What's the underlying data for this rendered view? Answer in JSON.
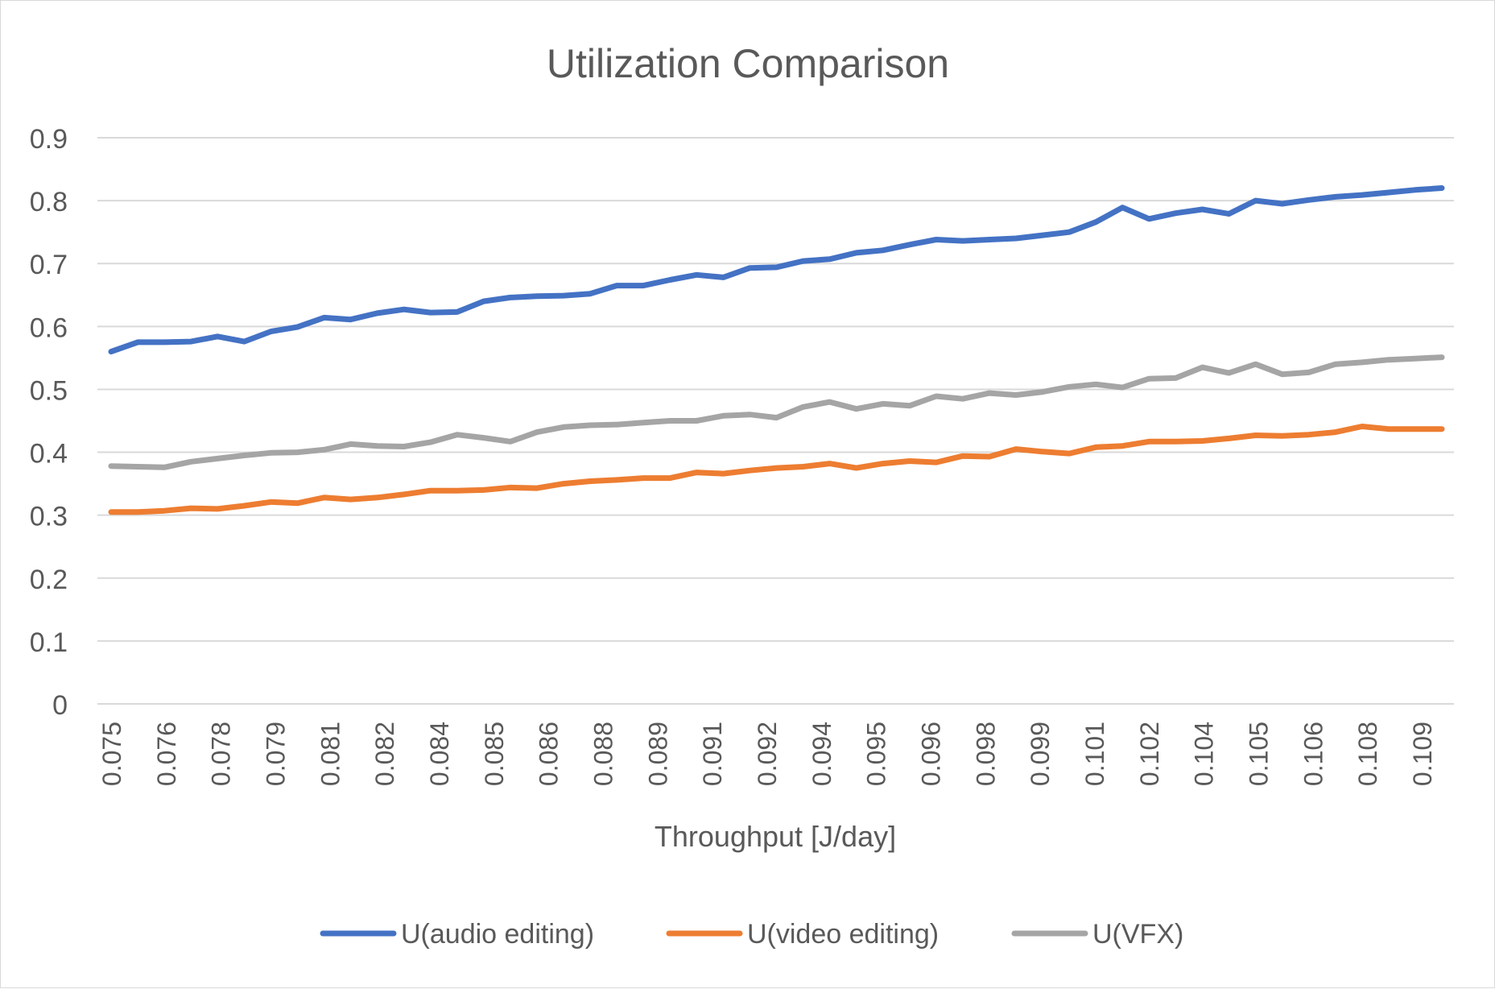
{
  "chart_data": {
    "type": "line",
    "title": "Utilization Comparison",
    "xlabel": "Throughput [J/day]",
    "ylabel": "",
    "ylim": [
      0,
      0.9
    ],
    "yticks": [
      "0",
      "0.1",
      "0.2",
      "0.3",
      "0.4",
      "0.5",
      "0.6",
      "0.7",
      "0.8",
      "0.9"
    ],
    "x_tick_labels": [
      "0.075",
      "0.076",
      "0.078",
      "0.079",
      "0.081",
      "0.082",
      "0.084",
      "0.085",
      "0.086",
      "0.088",
      "0.089",
      "0.091",
      "0.092",
      "0.094",
      "0.095",
      "0.096",
      "0.098",
      "0.099",
      "0.101",
      "0.102",
      "0.104",
      "0.105",
      "0.106",
      "0.108",
      "0.109"
    ],
    "grid": true,
    "legend_position": "bottom",
    "x": [
      0.075,
      0.0757,
      0.0764,
      0.0771,
      0.0778,
      0.0785,
      0.0792,
      0.0799,
      0.0806,
      0.0813,
      0.082,
      0.0827,
      0.0834,
      0.0841,
      0.0848,
      0.0855,
      0.0862,
      0.0869,
      0.0876,
      0.0883,
      0.089,
      0.0897,
      0.0904,
      0.0911,
      0.0918,
      0.0925,
      0.0932,
      0.0939,
      0.0946,
      0.0953,
      0.096,
      0.0967,
      0.0974,
      0.0981,
      0.0988,
      0.0995,
      0.1002,
      0.1009,
      0.1016,
      0.1023,
      0.103,
      0.1037,
      0.1044,
      0.1051,
      0.1058,
      0.1065,
      0.1072,
      0.1079,
      0.1086,
      0.1093,
      0.11
    ],
    "series": [
      {
        "name": "U(audio editing)",
        "color": "#4472c4",
        "values": [
          0.56,
          0.575,
          0.575,
          0.576,
          0.584,
          0.576,
          0.592,
          0.599,
          0.614,
          0.611,
          0.621,
          0.627,
          0.622,
          0.623,
          0.64,
          0.646,
          0.648,
          0.649,
          0.652,
          0.665,
          0.665,
          0.674,
          0.682,
          0.678,
          0.693,
          0.694,
          0.704,
          0.707,
          0.717,
          0.721,
          0.73,
          0.738,
          0.736,
          0.738,
          0.74,
          0.745,
          0.75,
          0.766,
          0.789,
          0.771,
          0.78,
          0.786,
          0.779,
          0.8,
          0.795,
          0.801,
          0.806,
          0.809,
          0.813,
          0.817,
          0.82
        ]
      },
      {
        "name": "U(video editing)",
        "color": "#ed7d31",
        "values": [
          0.305,
          0.305,
          0.307,
          0.311,
          0.31,
          0.315,
          0.321,
          0.319,
          0.328,
          0.325,
          0.328,
          0.333,
          0.339,
          0.339,
          0.34,
          0.344,
          0.343,
          0.35,
          0.354,
          0.356,
          0.359,
          0.359,
          0.368,
          0.366,
          0.371,
          0.375,
          0.377,
          0.382,
          0.375,
          0.382,
          0.386,
          0.384,
          0.394,
          0.393,
          0.405,
          0.401,
          0.398,
          0.408,
          0.41,
          0.417,
          0.417,
          0.418,
          0.422,
          0.427,
          0.426,
          0.428,
          0.432,
          0.441,
          0.437,
          0.437,
          0.437
        ]
      },
      {
        "name": "U(VFX)",
        "color": "#a5a5a5",
        "values": [
          0.378,
          0.377,
          0.376,
          0.385,
          0.39,
          0.395,
          0.399,
          0.4,
          0.404,
          0.413,
          0.41,
          0.409,
          0.416,
          0.428,
          0.423,
          0.417,
          0.432,
          0.44,
          0.443,
          0.444,
          0.447,
          0.45,
          0.45,
          0.458,
          0.46,
          0.455,
          0.472,
          0.48,
          0.469,
          0.477,
          0.474,
          0.489,
          0.485,
          0.494,
          0.491,
          0.496,
          0.504,
          0.508,
          0.503,
          0.517,
          0.518,
          0.535,
          0.526,
          0.54,
          0.524,
          0.527,
          0.54,
          0.543,
          0.547,
          0.549,
          0.551
        ]
      }
    ]
  }
}
